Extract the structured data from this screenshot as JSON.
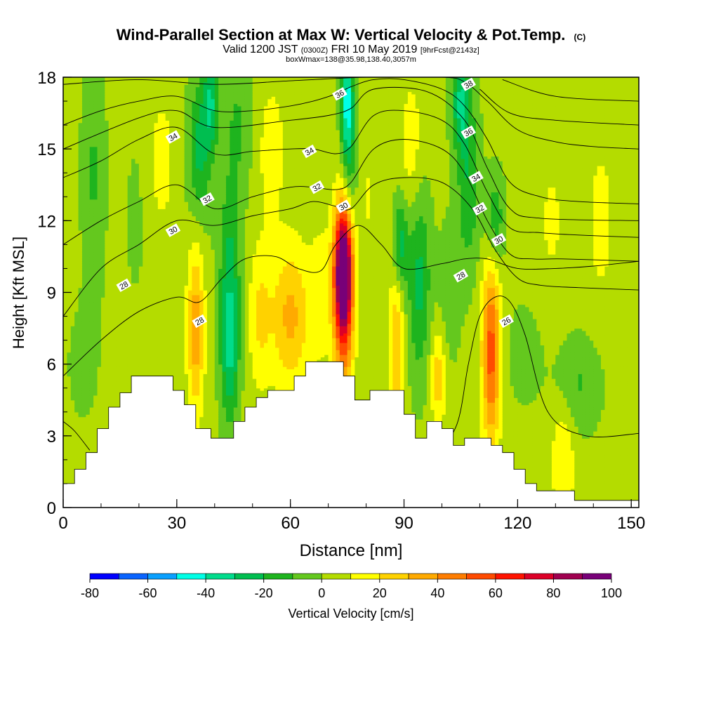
{
  "chart_data": {
    "type": "heatmap",
    "title": "Wind-Parallel Section at Max W: Vertical Velocity & Pot.Temp.",
    "title_mark": "(C)",
    "subtitle_parts": [
      "Valid 1200 JST",
      "(0300Z)",
      "FRI 10 May 2019",
      "[9hrFcst@2143z]"
    ],
    "subtitle2": "boxWmax=138@35.98,138.40,3057m",
    "xlabel": "Distance [nm]",
    "ylabel": "Height [Kft MSL]",
    "xlim": [
      0,
      152
    ],
    "ylim": [
      0,
      18
    ],
    "x_ticks": [
      0,
      30,
      60,
      90,
      120,
      150
    ],
    "x_tick_labels": [
      "0",
      "30",
      "60",
      "90",
      "120",
      "150"
    ],
    "x_minor_step": 10,
    "y_ticks": [
      0,
      3,
      6,
      9,
      12,
      15,
      18
    ],
    "y_tick_labels": [
      "0",
      "3",
      "6",
      "9",
      "12",
      "15",
      "18"
    ],
    "y_minor_step": 1,
    "colorbar": {
      "label": "Vertical Velocity [cm/s]",
      "levels": [
        -80,
        -70,
        -60,
        -50,
        -40,
        -30,
        -20,
        -10,
        0,
        10,
        20,
        30,
        40,
        50,
        60,
        70,
        80,
        90,
        100
      ],
      "tick_labels": [
        "-80",
        "-60",
        "-40",
        "-20",
        "0",
        "20",
        "40",
        "60",
        "80",
        "100"
      ],
      "tick_values": [
        -80,
        -60,
        -40,
        -20,
        0,
        20,
        40,
        60,
        80,
        100
      ],
      "colors": [
        "#0000ff",
        "#0a64ff",
        "#0aa0ff",
        "#00ffe6",
        "#00dc8c",
        "#00be50",
        "#1eb41e",
        "#64c81e",
        "#b4dc00",
        "#ffff00",
        "#ffd200",
        "#ffaa00",
        "#ff7d00",
        "#ff4b00",
        "#ff1400",
        "#dc0028",
        "#a00050",
        "#780078"
      ]
    },
    "background_value": 3,
    "velocity_features": [
      {
        "x": 8,
        "z": 14,
        "sx": 3,
        "sz": 5,
        "w": -14
      },
      {
        "x": 5,
        "z": 6,
        "sx": 5,
        "sz": 3,
        "w": -5
      },
      {
        "x": 19,
        "z": 12,
        "sx": 4,
        "sz": 5,
        "w": -4
      },
      {
        "x": 26,
        "z": 14.5,
        "sx": 3,
        "sz": 2.5,
        "w": 14
      },
      {
        "x": 36,
        "z": 15,
        "sx": 3,
        "sz": 3,
        "w": -26
      },
      {
        "x": 39,
        "z": 17,
        "sx": 2,
        "sz": 2,
        "w": -30
      },
      {
        "x": 35,
        "z": 7.5,
        "sx": 2.2,
        "sz": 3.5,
        "w": 34
      },
      {
        "x": 44,
        "z": 6.8,
        "sx": 2.5,
        "sz": 3.2,
        "w": -36
      },
      {
        "x": 44,
        "z": 11,
        "sx": 3,
        "sz": 3,
        "w": -18
      },
      {
        "x": 46,
        "z": 16,
        "sx": 4,
        "sz": 3,
        "w": -14
      },
      {
        "x": 55,
        "z": 15,
        "sx": 4,
        "sz": 3,
        "w": 12
      },
      {
        "x": 60,
        "z": 8,
        "sx": 5,
        "sz": 3,
        "w": 30
      },
      {
        "x": 52,
        "z": 8,
        "sx": 3,
        "sz": 3,
        "w": 18
      },
      {
        "x": 68,
        "z": 9,
        "sx": 3,
        "sz": 3,
        "w": 12
      },
      {
        "x": 74,
        "z": 10,
        "sx": 2.4,
        "sz": 2.6,
        "w": 95
      },
      {
        "x": 74,
        "z": 8,
        "sx": 2.6,
        "sz": 4,
        "w": 40
      },
      {
        "x": 75,
        "z": 17,
        "sx": 1.6,
        "sz": 2.5,
        "w": -45
      },
      {
        "x": 76,
        "z": 14,
        "sx": 2.2,
        "sz": 3.2,
        "w": -16
      },
      {
        "x": 80,
        "z": 13,
        "sx": 3,
        "sz": 3,
        "w": 8
      },
      {
        "x": 88,
        "z": 7,
        "sx": 2,
        "sz": 3.5,
        "w": 26
      },
      {
        "x": 94,
        "z": 9.5,
        "sx": 3,
        "sz": 4,
        "w": -26
      },
      {
        "x": 89,
        "z": 11,
        "sx": 2,
        "sz": 2,
        "w": -30
      },
      {
        "x": 92,
        "z": 15,
        "sx": 3,
        "sz": 3,
        "w": 14
      },
      {
        "x": 99,
        "z": 5.5,
        "sx": 2,
        "sz": 2,
        "w": 24
      },
      {
        "x": 102,
        "z": 9,
        "sx": 3,
        "sz": 3,
        "w": -10
      },
      {
        "x": 105,
        "z": 17,
        "sx": 2.5,
        "sz": 2,
        "w": -32
      },
      {
        "x": 107,
        "z": 13.5,
        "sx": 3,
        "sz": 3.5,
        "w": -22
      },
      {
        "x": 113,
        "z": 6.5,
        "sx": 2.4,
        "sz": 3.8,
        "w": 52
      },
      {
        "x": 114,
        "z": 12,
        "sx": 2.5,
        "sz": 2,
        "w": -22
      },
      {
        "x": 122,
        "z": 6.5,
        "sx": 5,
        "sz": 2.2,
        "w": -8
      },
      {
        "x": 136,
        "z": 5.2,
        "sx": 6,
        "sz": 2,
        "w": -14
      },
      {
        "x": 132,
        "z": 2,
        "sx": 3,
        "sz": 2.5,
        "w": 18
      },
      {
        "x": 129,
        "z": 12,
        "sx": 5,
        "sz": 4,
        "w": 8
      },
      {
        "x": 142,
        "z": 12,
        "sx": 4,
        "sz": 4,
        "w": 10
      }
    ],
    "terrain_steps": [
      [
        0,
        1.0
      ],
      [
        3,
        1.6
      ],
      [
        6,
        2.3
      ],
      [
        9,
        3.3
      ],
      [
        12,
        4.2
      ],
      [
        15,
        4.8
      ],
      [
        18,
        5.5
      ],
      [
        22,
        5.5
      ],
      [
        25,
        5.5
      ],
      [
        29,
        4.9
      ],
      [
        32,
        4.3
      ],
      [
        35,
        3.3
      ],
      [
        39,
        2.9
      ],
      [
        45,
        3.6
      ],
      [
        48,
        4.2
      ],
      [
        51,
        4.6
      ],
      [
        54,
        4.9
      ],
      [
        57,
        4.9
      ],
      [
        61,
        5.5
      ],
      [
        64,
        6.1
      ],
      [
        70,
        6.1
      ],
      [
        74,
        5.5
      ],
      [
        77,
        4.5
      ],
      [
        81,
        4.9
      ],
      [
        85,
        4.9
      ],
      [
        90,
        3.9
      ],
      [
        93,
        2.9
      ],
      [
        96,
        3.6
      ],
      [
        100,
        3.3
      ],
      [
        103,
        2.6
      ],
      [
        106,
        2.9
      ],
      [
        110,
        2.9
      ],
      [
        113,
        2.6
      ],
      [
        116,
        2.3
      ],
      [
        119,
        1.6
      ],
      [
        122,
        1.0
      ],
      [
        125,
        0.7
      ],
      [
        130,
        0.7
      ],
      [
        135,
        0.3
      ],
      [
        152,
        0.3
      ]
    ],
    "theta_contours": [
      {
        "label": "26",
        "pts": [
          [
            0,
            3.6
          ],
          [
            3,
            3.2
          ],
          [
            7,
            2.4
          ]
        ]
      },
      {
        "label": "26",
        "pts": [
          [
            98,
            2.0
          ],
          [
            104,
            3.5
          ],
          [
            107,
            6.0
          ],
          [
            110,
            8.0
          ],
          [
            114,
            8.8
          ],
          [
            118,
            8.6
          ],
          [
            122,
            7.2
          ],
          [
            128,
            4.0
          ],
          [
            138,
            3.0
          ],
          [
            152,
            3.1
          ]
        ]
      },
      {
        "label": "28",
        "pts": [
          [
            0,
            5.5
          ],
          [
            10,
            7.0
          ],
          [
            20,
            8.2
          ],
          [
            30,
            8.8
          ],
          [
            36,
            8.6
          ],
          [
            42,
            9.6
          ],
          [
            48,
            10.4
          ],
          [
            56,
            10.5
          ],
          [
            62,
            10.0
          ],
          [
            68,
            9.9
          ],
          [
            72,
            11.0
          ],
          [
            78,
            11.8
          ],
          [
            84,
            11.0
          ],
          [
            90,
            10.0
          ],
          [
            100,
            10.2
          ],
          [
            106,
            10.4
          ],
          [
            112,
            10.4
          ],
          [
            120,
            10.0
          ],
          [
            130,
            10.0
          ],
          [
            140,
            10.1
          ],
          [
            152,
            10.3
          ]
        ]
      },
      {
        "label": "30",
        "pts": [
          [
            0,
            8.0
          ],
          [
            10,
            10.0
          ],
          [
            20,
            11.0
          ],
          [
            30,
            12.0
          ],
          [
            40,
            11.8
          ],
          [
            50,
            12.2
          ],
          [
            60,
            12.5
          ],
          [
            66,
            12.8
          ],
          [
            72,
            12.6
          ],
          [
            76,
            12.5
          ],
          [
            82,
            13.5
          ],
          [
            90,
            13.8
          ],
          [
            100,
            13.6
          ],
          [
            108,
            12.5
          ],
          [
            114,
            10.8
          ],
          [
            120,
            9.6
          ],
          [
            126,
            9.3
          ],
          [
            136,
            9.2
          ],
          [
            152,
            9.1
          ]
        ]
      },
      {
        "label": "32",
        "pts": [
          [
            0,
            11.0
          ],
          [
            10,
            12.0
          ],
          [
            20,
            12.8
          ],
          [
            30,
            13.5
          ],
          [
            40,
            12.5
          ],
          [
            50,
            13.0
          ],
          [
            60,
            13.4
          ],
          [
            66,
            13.4
          ],
          [
            72,
            13.3
          ],
          [
            76,
            13.6
          ],
          [
            82,
            15.0
          ],
          [
            90,
            15.4
          ],
          [
            100,
            15.0
          ],
          [
            106,
            14.0
          ],
          [
            112,
            12.0
          ],
          [
            118,
            10.6
          ],
          [
            124,
            10.4
          ],
          [
            132,
            10.4
          ],
          [
            152,
            10.3
          ]
        ]
      },
      {
        "label": "34",
        "pts": [
          [
            0,
            13.8
          ],
          [
            10,
            14.5
          ],
          [
            20,
            15.4
          ],
          [
            30,
            15.9
          ],
          [
            40,
            14.8
          ],
          [
            50,
            14.9
          ],
          [
            60,
            15.0
          ],
          [
            66,
            15.0
          ],
          [
            72,
            14.8
          ],
          [
            76,
            15.1
          ],
          [
            82,
            16.4
          ],
          [
            90,
            16.6
          ],
          [
            100,
            16.2
          ],
          [
            106,
            15.2
          ],
          [
            112,
            13.2
          ],
          [
            118,
            11.7
          ],
          [
            126,
            11.5
          ],
          [
            136,
            11.4
          ],
          [
            152,
            11.3
          ]
        ]
      },
      {
        "label": "36",
        "pts": [
          [
            0,
            16.0
          ],
          [
            10,
            16.6
          ],
          [
            20,
            17.0
          ],
          [
            30,
            17.2
          ],
          [
            40,
            16.6
          ],
          [
            50,
            16.6
          ],
          [
            60,
            16.8
          ],
          [
            66,
            17.0
          ],
          [
            72,
            17.3
          ],
          [
            76,
            17.6
          ],
          [
            82,
            17.9
          ],
          [
            90,
            17.9
          ],
          [
            100,
            17.5
          ],
          [
            106,
            16.8
          ],
          [
            112,
            15.4
          ],
          [
            118,
            13.6
          ],
          [
            126,
            13.0
          ],
          [
            136,
            12.8
          ],
          [
            152,
            12.7
          ]
        ]
      },
      {
        "label": "38",
        "pts": [
          [
            0,
            17.7
          ],
          [
            20,
            17.9
          ],
          [
            40,
            17.7
          ],
          [
            60,
            17.85
          ],
          [
            80,
            18.0
          ],
          [
            100,
            18.0
          ],
          [
            106,
            17.8
          ],
          [
            112,
            17.0
          ],
          [
            120,
            15.8
          ],
          [
            130,
            15.3
          ],
          [
            140,
            15.1
          ],
          [
            152,
            15.0
          ]
        ]
      },
      {
        "label": "",
        "pts": [
          [
            0,
            15.0
          ],
          [
            20,
            16.3
          ],
          [
            30,
            16.6
          ],
          [
            40,
            15.9
          ],
          [
            60,
            16.2
          ],
          [
            70,
            16.4
          ],
          [
            76,
            16.7
          ],
          [
            82,
            17.5
          ],
          [
            96,
            17.4
          ],
          [
            106,
            16.2
          ],
          [
            112,
            14.2
          ],
          [
            118,
            12.5
          ],
          [
            126,
            12.1
          ],
          [
            152,
            12.0
          ]
        ]
      },
      {
        "label": "",
        "pts": [
          [
            110,
            17.5
          ],
          [
            118,
            16.5
          ],
          [
            130,
            16.2
          ],
          [
            152,
            16.0
          ]
        ]
      },
      {
        "label": "",
        "pts": [
          [
            116,
            17.9
          ],
          [
            130,
            17.2
          ],
          [
            152,
            17.0
          ]
        ]
      }
    ],
    "contour_label_points": [
      {
        "label": "28",
        "x": 16,
        "z": 9.3
      },
      {
        "label": "28",
        "x": 36,
        "z": 7.8
      },
      {
        "label": "28",
        "x": 105,
        "z": 9.7
      },
      {
        "label": "26",
        "x": 117,
        "z": 7.8
      },
      {
        "label": "30",
        "x": 29,
        "z": 11.6
      },
      {
        "label": "30",
        "x": 74,
        "z": 12.6
      },
      {
        "label": "30",
        "x": 115,
        "z": 11.2
      },
      {
        "label": "32",
        "x": 38,
        "z": 12.9
      },
      {
        "label": "32",
        "x": 67,
        "z": 13.4
      },
      {
        "label": "32",
        "x": 110,
        "z": 12.5
      },
      {
        "label": "34",
        "x": 29,
        "z": 15.5
      },
      {
        "label": "34",
        "x": 65,
        "z": 14.9
      },
      {
        "label": "34",
        "x": 109,
        "z": 13.8
      },
      {
        "label": "36",
        "x": 73,
        "z": 17.3
      },
      {
        "label": "36",
        "x": 107,
        "z": 15.7
      },
      {
        "label": "38",
        "x": 107,
        "z": 17.7
      }
    ]
  }
}
